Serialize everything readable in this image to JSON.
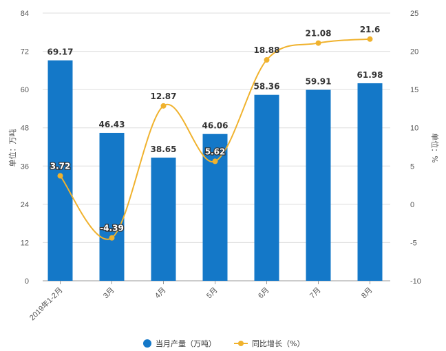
{
  "chart_data": {
    "type": "bar+line",
    "categories": [
      "2019年1-2月",
      "3月",
      "4月",
      "5月",
      "6月",
      "7月",
      "8月"
    ],
    "series": [
      {
        "name": "当月产量（万吨）",
        "type": "bar",
        "axis": "left",
        "color": "#1478c8",
        "values": [
          69.17,
          46.43,
          38.65,
          46.06,
          58.36,
          59.91,
          61.98
        ],
        "labels": [
          "69.17",
          "46.43",
          "38.65",
          "46.06",
          "58.36",
          "59.91",
          "61.98"
        ]
      },
      {
        "name": "同比增长（%）",
        "type": "line",
        "axis": "right",
        "color": "#f0b22d",
        "values": [
          3.72,
          -4.39,
          12.87,
          5.62,
          18.88,
          21.08,
          21.6
        ],
        "labels": [
          "3.72",
          "-4.39",
          "12.87",
          "5.62",
          "18.88",
          "21.08",
          "21.6"
        ]
      }
    ],
    "left_axis": {
      "label": "单位：万吨",
      "range": [
        0,
        84
      ],
      "ticks": [
        "0",
        "12",
        "24",
        "36",
        "48",
        "60",
        "72",
        "84"
      ]
    },
    "right_axis": {
      "label": "单位：%",
      "range": [
        -10,
        25
      ],
      "ticks": [
        "-10",
        "-5",
        "0",
        "5",
        "10",
        "15",
        "20",
        "25"
      ]
    },
    "grid": true,
    "legend": "bottom-center"
  }
}
